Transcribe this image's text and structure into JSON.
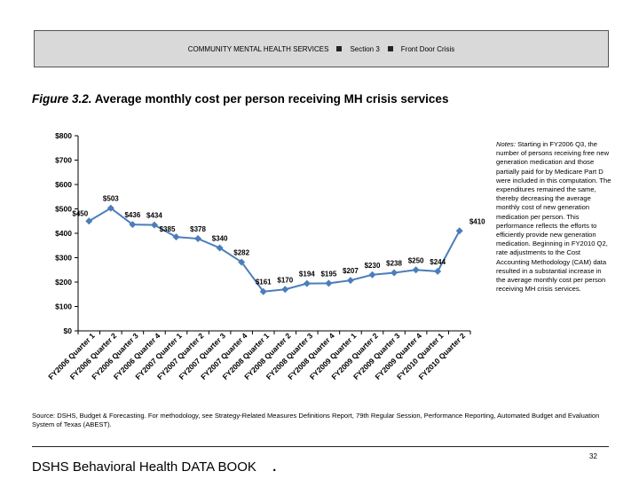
{
  "header": {
    "section_label": "COMMUNITY MENTAL HEALTH SERVICES",
    "section_number": "Section 3",
    "section_name": "Front Door Crisis"
  },
  "figure": {
    "label": "Figure 3.2.",
    "title": "Average monthly cost per person receiving MH crisis services"
  },
  "chart_data": {
    "type": "line",
    "title": "Average monthly cost per person receiving MH crisis services",
    "xlabel": "",
    "ylabel": "",
    "ylim": [
      0,
      800
    ],
    "yticks": [
      0,
      100,
      200,
      300,
      400,
      500,
      600,
      700,
      800
    ],
    "ytick_labels": [
      "$0",
      "$100",
      "$200",
      "$300",
      "$400",
      "$500",
      "$600",
      "$700",
      "$800"
    ],
    "grid": false,
    "legend": "none",
    "categories": [
      "FY2006 Quarter 1",
      "FY2006 Quarter 2",
      "FY2006 Quarter 3",
      "FY2006 Quarter 4",
      "FY2007 Quarter 1",
      "FY2007 Quarter 2",
      "FY2007 Quarter 3",
      "FY2007 Quarter 4",
      "FY2008 Quarter 1",
      "FY2008 Quarter 2",
      "FY2008 Quarter 3",
      "FY2008 Quarter 4",
      "FY2009 Quarter 1",
      "FY2009 Quarter 2",
      "FY2009 Quarter 3",
      "FY2009 Quarter 4",
      "FY2010 Quarter 1",
      "FY2010 Quarter 2"
    ],
    "values": [
      450,
      503,
      436,
      434,
      385,
      378,
      340,
      282,
      161,
      170,
      194,
      195,
      207,
      230,
      238,
      250,
      244,
      410
    ],
    "data_labels": [
      "$450",
      "$503",
      "$436",
      "$434",
      "$385",
      "$378",
      "$340",
      "$282",
      "$161",
      "$170",
      "$194",
      "$195",
      "$207",
      "$230",
      "$238",
      "$250",
      "$244",
      "$410"
    ],
    "series_color": "#4a7ebb"
  },
  "notes": {
    "label": "Notes:",
    "text": "Starting in FY2006 Q3, the number of persons receiving free new generation medication and those partially paid for by Medicare Part D were included in this computation. The expenditures remained the same, thereby decreasing the average monthly cost of new generation medication per person. This performance reflects the efforts to efficiently provide new generation medication. Beginning in FY2010 Q2, rate adjustments to the Cost Accounting Methodology (CAM) data resulted in a substantial increase in the average monthly cost per person receiving MH crisis services."
  },
  "source": {
    "label": "Source:",
    "text": "DSHS, Budget & Forecasting. For methodology, see Strategy-Related Measures Definitions Report, 79th Regular Session, Performance Reporting, Automated Budget and Evaluation System of Texas (ABEST)."
  },
  "footer": {
    "title": "DSHS Behavioral Health DATA BOOK",
    "dot": ".",
    "page_number": "32"
  }
}
